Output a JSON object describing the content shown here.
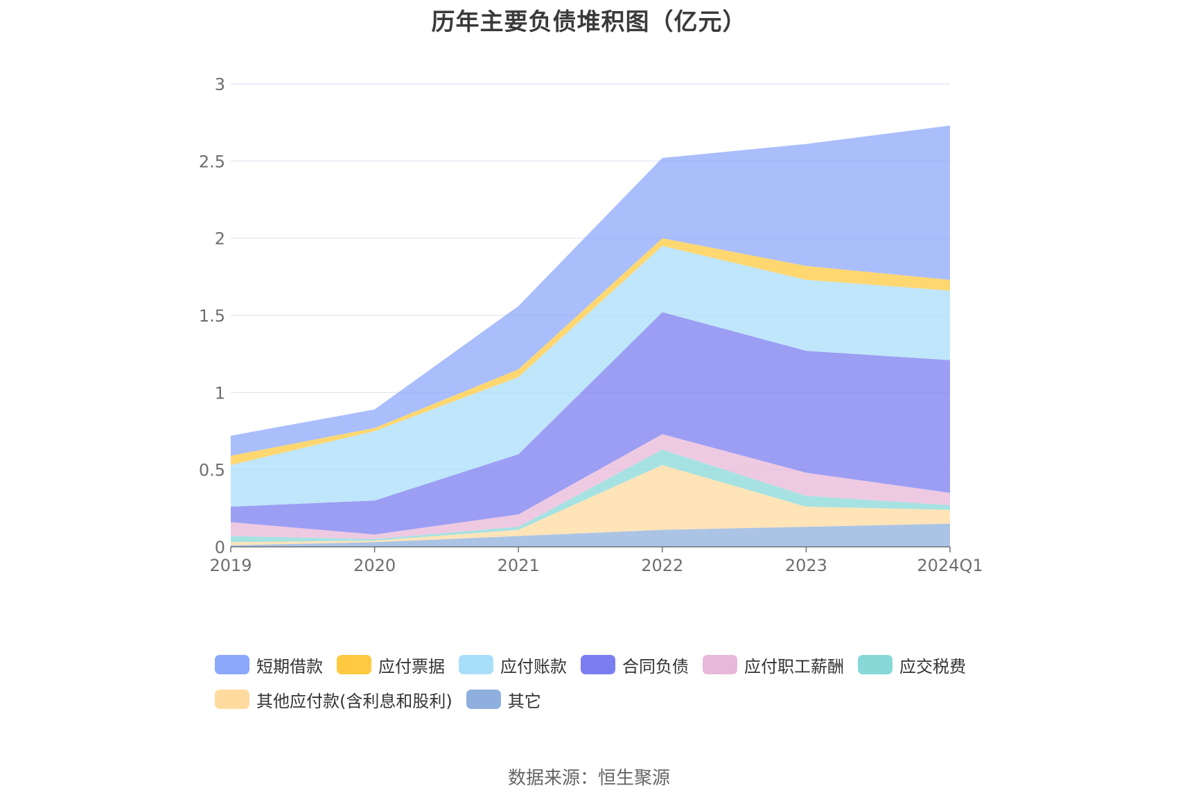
{
  "chart_data": {
    "type": "area",
    "stacked": true,
    "title": "历年主要负债堆积图（亿元）",
    "source_text": "数据来源：恒生聚源",
    "categories": [
      "2019",
      "2020",
      "2021",
      "2022",
      "2023",
      "2024Q1"
    ],
    "ylim": [
      0,
      3
    ],
    "yticks": [
      0,
      0.5,
      1,
      1.5,
      2,
      2.5,
      3
    ],
    "ytick_labels": [
      "0",
      "0.5",
      "1",
      "1.5",
      "2",
      "2.5",
      "3"
    ],
    "grid": true,
    "legend_position": "bottom",
    "series": [
      {
        "name": "其它",
        "color": "#8FB0DE",
        "values": [
          0.01,
          0.03,
          0.07,
          0.11,
          0.13,
          0.15
        ]
      },
      {
        "name": "其他应付款(含利息和股利)",
        "color": "#FFDBA0",
        "values": [
          0.02,
          0.01,
          0.04,
          0.42,
          0.13,
          0.09
        ]
      },
      {
        "name": "应交税费",
        "color": "#88D8D8",
        "values": [
          0.04,
          0.01,
          0.02,
          0.1,
          0.07,
          0.03
        ]
      },
      {
        "name": "应付职工薪酬",
        "color": "#E8B8D8",
        "values": [
          0.09,
          0.03,
          0.08,
          0.1,
          0.15,
          0.08
        ]
      },
      {
        "name": "合同负债",
        "color": "#7B7EF0",
        "values": [
          0.1,
          0.22,
          0.39,
          0.79,
          0.79,
          0.86
        ]
      },
      {
        "name": "应付账款",
        "color": "#A9DEF8",
        "values": [
          0.27,
          0.45,
          0.5,
          0.43,
          0.46,
          0.45
        ]
      },
      {
        "name": "应付票据",
        "color": "#FFC941",
        "values": [
          0.06,
          0.02,
          0.05,
          0.05,
          0.09,
          0.07
        ]
      },
      {
        "name": "短期借款",
        "color": "#8CA8FA",
        "values": [
          0.13,
          0.12,
          0.41,
          0.52,
          0.79,
          1.0
        ]
      }
    ],
    "legend_order": [
      "短期借款",
      "应付票据",
      "应付账款",
      "合同负债",
      "应付职工薪酬",
      "应交税费",
      "其他应付款(含利息和股利)",
      "其它"
    ]
  }
}
